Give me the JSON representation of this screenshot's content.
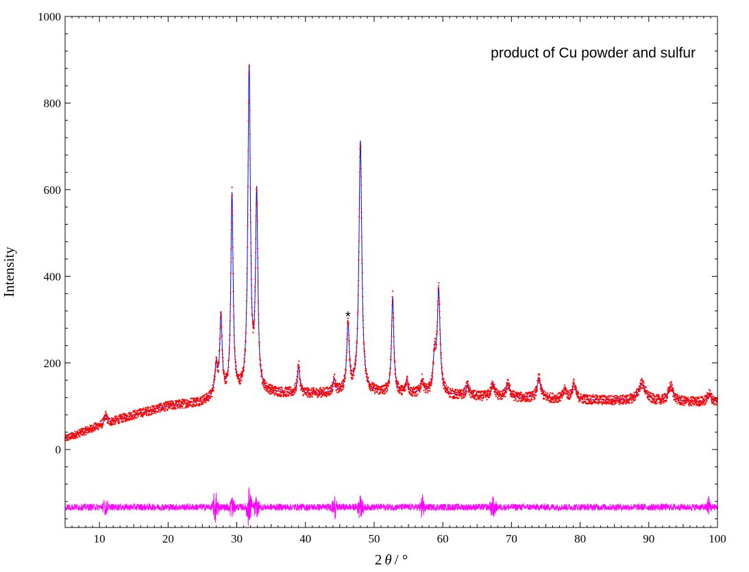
{
  "chart_data": {
    "type": "line",
    "annotation": "product of Cu powder and sulfur",
    "xlabel": "2θ / °",
    "xlabel_symbol": "θ",
    "ylabel": "Intensity",
    "xlim": [
      5,
      100
    ],
    "ylim": [
      -180,
      1000
    ],
    "x_ticks": [
      10,
      20,
      30,
      40,
      50,
      60,
      70,
      80,
      90,
      100
    ],
    "y_ticks": [
      0,
      200,
      400,
      600,
      800,
      1000
    ],
    "grid": false,
    "legend": "none",
    "peak_marker": {
      "label": "*",
      "x": 46.2,
      "y": 315
    },
    "background": {
      "x": [
        5,
        10,
        15,
        20,
        25,
        27,
        30,
        35,
        40,
        45,
        50,
        55,
        60,
        65,
        70,
        75,
        80,
        85,
        90,
        95,
        100
      ],
      "y": [
        25,
        55,
        80,
        100,
        110,
        118,
        125,
        130,
        128,
        130,
        130,
        128,
        125,
        122,
        120,
        118,
        115,
        113,
        112,
        110,
        110
      ]
    },
    "peaks": [
      {
        "x": 10.9,
        "y": 20,
        "w": 0.2
      },
      {
        "x": 27.0,
        "y": 70,
        "w": 0.25
      },
      {
        "x": 27.7,
        "y": 180,
        "w": 0.2
      },
      {
        "x": 29.3,
        "y": 460,
        "w": 0.2
      },
      {
        "x": 31.8,
        "y": 745,
        "w": 0.22
      },
      {
        "x": 32.9,
        "y": 450,
        "w": 0.2
      },
      {
        "x": 39.0,
        "y": 65,
        "w": 0.2
      },
      {
        "x": 44.2,
        "y": 30,
        "w": 0.2
      },
      {
        "x": 46.2,
        "y": 155,
        "w": 0.22
      },
      {
        "x": 48.0,
        "y": 580,
        "w": 0.25
      },
      {
        "x": 52.7,
        "y": 220,
        "w": 0.2
      },
      {
        "x": 54.8,
        "y": 30,
        "w": 0.2
      },
      {
        "x": 57.0,
        "y": 30,
        "w": 0.25
      },
      {
        "x": 58.8,
        "y": 80,
        "w": 0.25
      },
      {
        "x": 59.4,
        "y": 235,
        "w": 0.25
      },
      {
        "x": 63.6,
        "y": 25,
        "w": 0.25
      },
      {
        "x": 67.3,
        "y": 30,
        "w": 0.3
      },
      {
        "x": 69.5,
        "y": 30,
        "w": 0.3
      },
      {
        "x": 74.0,
        "y": 45,
        "w": 0.3
      },
      {
        "x": 77.8,
        "y": 20,
        "w": 0.3
      },
      {
        "x": 79.1,
        "y": 35,
        "w": 0.3
      },
      {
        "x": 89.0,
        "y": 40,
        "w": 0.6
      },
      {
        "x": 93.2,
        "y": 35,
        "w": 0.4
      },
      {
        "x": 98.8,
        "y": 20,
        "w": 0.3
      }
    ],
    "difference": {
      "baseline": -133,
      "noise": 8,
      "spikes": [
        {
          "x": 10.9,
          "amp": 18
        },
        {
          "x": 26.9,
          "amp": 45
        },
        {
          "x": 29.3,
          "amp": 30
        },
        {
          "x": 31.8,
          "amp": 50
        },
        {
          "x": 32.9,
          "amp": 30
        },
        {
          "x": 44.2,
          "amp": 30
        },
        {
          "x": 48.0,
          "amp": 35
        },
        {
          "x": 57.0,
          "amp": 25
        },
        {
          "x": 67.3,
          "amp": 30
        },
        {
          "x": 98.8,
          "amp": 25
        }
      ]
    },
    "colors": {
      "observed": "#ff0000",
      "calculated": "#0000ff",
      "difference": "#ff00ff",
      "axis": "#000000"
    }
  }
}
